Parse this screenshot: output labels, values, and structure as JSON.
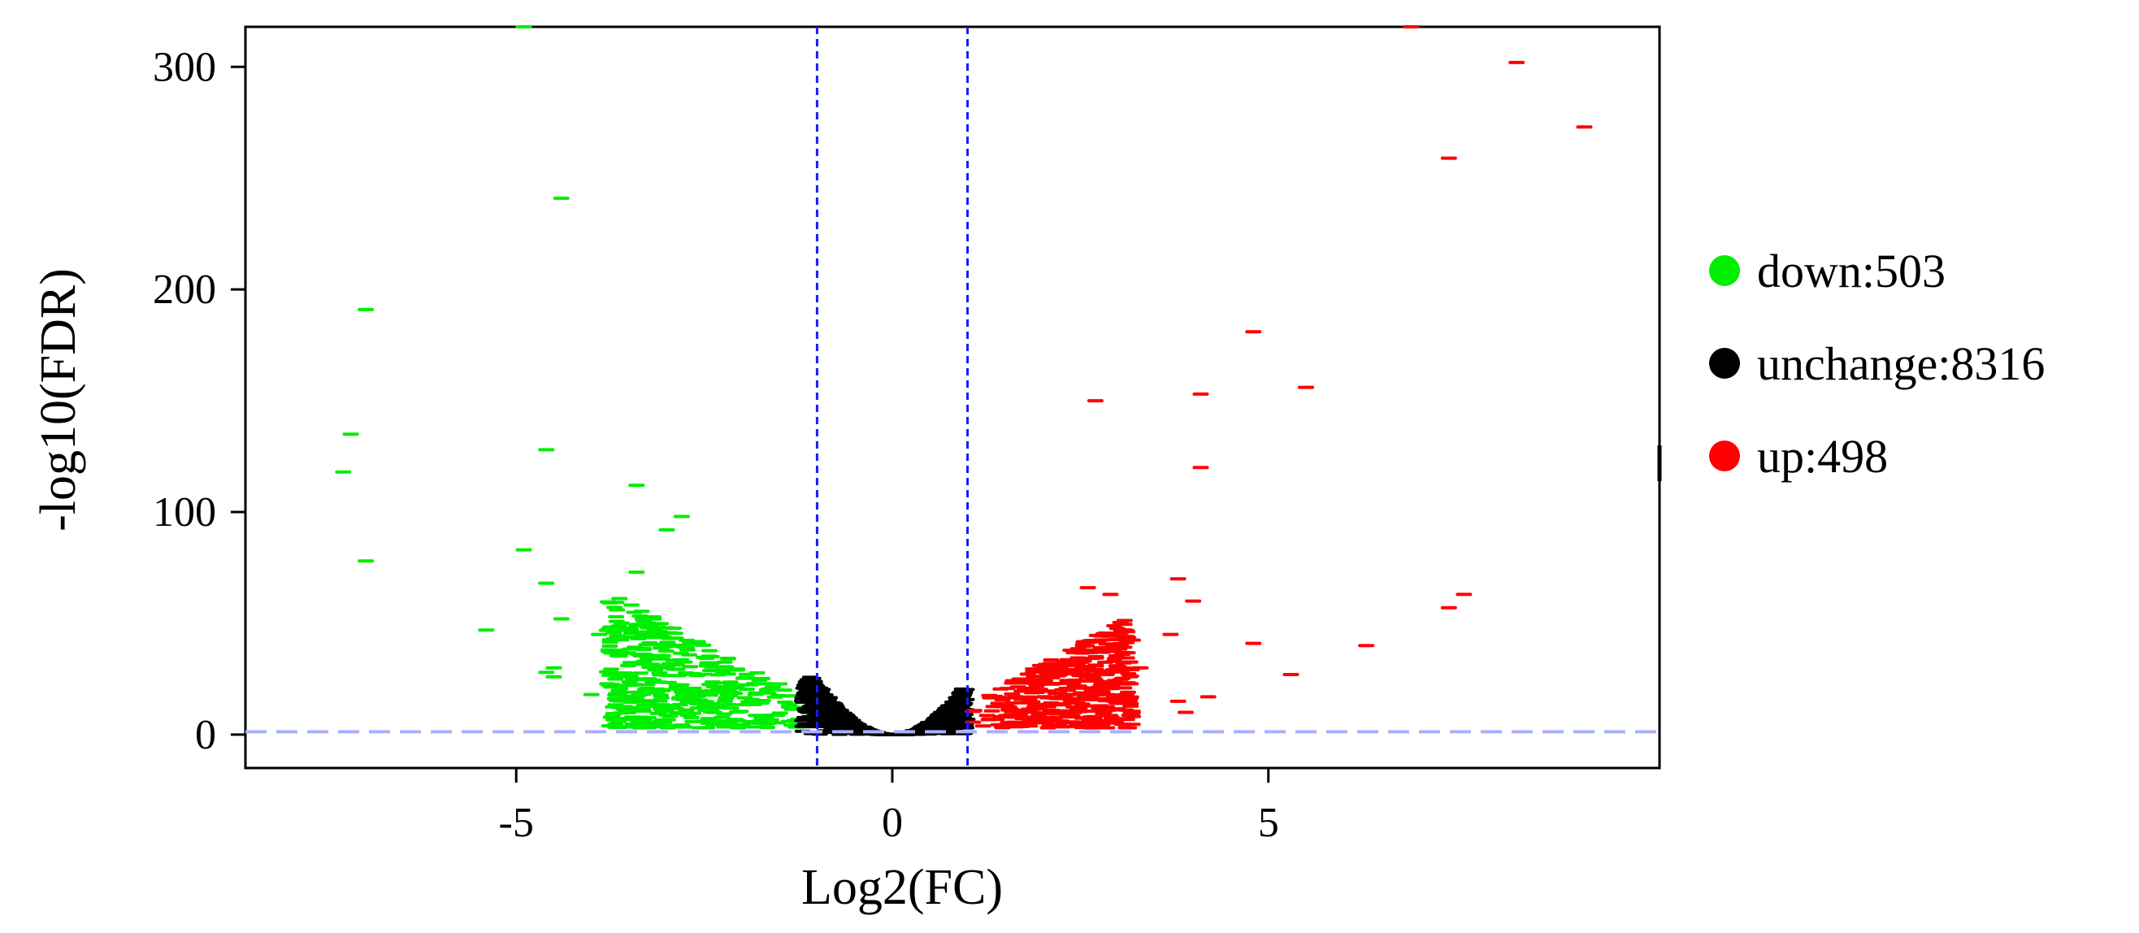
{
  "chart_data": {
    "type": "scatter",
    "title": "",
    "xlabel": "Log2(FC)",
    "ylabel": "-log10(FDR)",
    "xlim": [
      -8.6,
      10.2
    ],
    "ylim": [
      -15,
      318
    ],
    "x_ticks": [
      -5,
      0,
      5
    ],
    "x_tick_labels": [
      "-5",
      "0",
      "5"
    ],
    "y_ticks": [
      0,
      100,
      200,
      300
    ],
    "y_tick_labels": [
      "0",
      "100",
      "200",
      "300"
    ],
    "threshold_lines": {
      "vertical": [
        -1,
        1
      ],
      "horizontal": [
        1.3
      ]
    },
    "grid": false,
    "legend_position": "right",
    "legend": [
      {
        "label": "down:503",
        "color": "#00ee00"
      },
      {
        "label": "unchange:8316",
        "color": "#000000"
      },
      {
        "label": "up:498",
        "color": "#ff0000"
      }
    ],
    "series": [
      {
        "name": "down",
        "color": "#00ee00",
        "points": [
          [
            -4.9,
            318
          ],
          [
            -4.4,
            241
          ],
          [
            -7.0,
            191
          ],
          [
            -7.2,
            135
          ],
          [
            -7.3,
            118
          ],
          [
            -4.6,
            128
          ],
          [
            -7.0,
            78
          ],
          [
            -4.9,
            83
          ],
          [
            -3.4,
            112
          ],
          [
            -2.8,
            98
          ],
          [
            -3.0,
            92
          ],
          [
            -3.4,
            73
          ],
          [
            -4.6,
            68
          ],
          [
            -4.4,
            52
          ],
          [
            -5.4,
            47
          ],
          [
            -3.9,
            45
          ],
          [
            -4.6,
            28
          ],
          [
            -4.5,
            30
          ],
          [
            -4.5,
            26
          ],
          [
            -4.0,
            18
          ]
        ],
        "cluster": {
          "x_range": [
            -3.8,
            -1.0
          ],
          "y_range": [
            3,
            62
          ],
          "count": 480
        }
      },
      {
        "name": "unchange",
        "color": "#000000",
        "curve": "y <= 24 * x^2",
        "x_range": [
          -1.2,
          1.0
        ],
        "count": 900
      },
      {
        "name": "up",
        "color": "#ff0000",
        "points": [
          [
            8.3,
            302
          ],
          [
            9.2,
            273
          ],
          [
            7.4,
            259
          ],
          [
            4.8,
            181
          ],
          [
            5.5,
            156
          ],
          [
            4.1,
            153
          ],
          [
            2.7,
            150
          ],
          [
            4.1,
            120
          ],
          [
            3.8,
            70
          ],
          [
            2.6,
            66
          ],
          [
            2.9,
            63
          ],
          [
            4.0,
            60
          ],
          [
            7.6,
            63
          ],
          [
            7.4,
            57
          ],
          [
            3.7,
            45
          ],
          [
            4.8,
            41
          ],
          [
            6.3,
            40
          ],
          [
            3.3,
            30
          ],
          [
            5.3,
            27
          ],
          [
            3.8,
            15
          ],
          [
            4.2,
            17
          ],
          [
            3.9,
            10
          ],
          [
            6.9,
            318
          ]
        ],
        "cluster": {
          "x_range": [
            1.0,
            3.2
          ],
          "y_range": [
            3,
            66
          ],
          "count": 460
        }
      }
    ]
  }
}
